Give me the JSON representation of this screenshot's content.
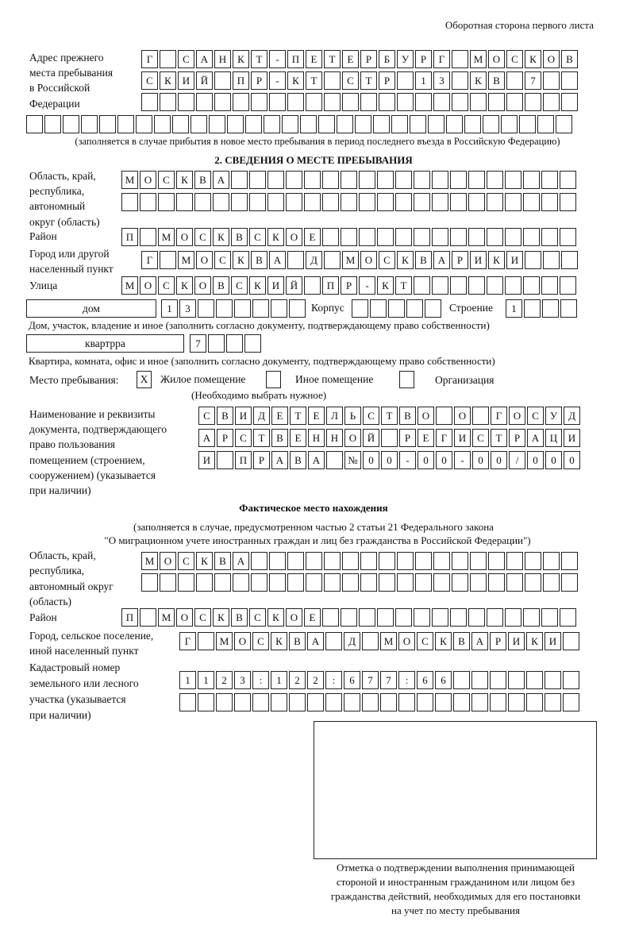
{
  "header": "Оборотная сторона первого листа",
  "prev_address": {
    "label": "Адрес прежнего места пребывания в Российской Федерации",
    "label_lines": [
      "Адрес прежнего",
      "места пребывания",
      "в Российской",
      "Федерации"
    ],
    "rows": [
      "Г САНКТ-ПЕТЕРБУРГ МОСКОВ",
      "СКИЙ ПР-КТ СТР 13 КВ 7  ",
      "",
      ""
    ],
    "note": "(заполняется в случае прибытия в новое место пребывания в период последнего въезда в Российскую Федерацию)"
  },
  "section2": {
    "title": "2. СВЕДЕНИЯ О МЕСТЕ ПРЕБЫВАНИЯ",
    "region_label_lines": [
      "Область, край,",
      "республика,",
      "автономный",
      "округ (область)"
    ],
    "region_rows": [
      "МОСКВА",
      ""
    ],
    "district_label": "Район",
    "district": "П МОСКВСКОЕ",
    "city_label_lines": [
      "Город или другой",
      "населенный пункт"
    ],
    "city": "Г МОСКВА Д МОСКВАРИКИ",
    "street_label": "Улица",
    "street": "МОСКОВСКИЙ ПР-КТ",
    "house_type": "дом",
    "house_number": "13",
    "korpus_label": "Корпус",
    "korpus": "",
    "stroenie_label": "Строение",
    "stroenie": "1",
    "house_note": "Дом, участок, владение и иное (заполнить согласно документу, подтверждающему право собственности)",
    "apt_type": "квартрра",
    "apt_number": "7",
    "apt_note": "Квартира, комната, офис и иное (заполнить согласно документу, подтверждающему право собственности)",
    "stay_place_label": "Место пребывания:",
    "stay_options": [
      {
        "label": "Жилое помещение",
        "checked": true,
        "mark": "Х"
      },
      {
        "label": "Иное помещение",
        "checked": false,
        "mark": ""
      },
      {
        "label": "Организация",
        "checked": false,
        "mark": ""
      }
    ],
    "choose_note": "(Необходимо выбрать нужное)",
    "doc_label_lines": [
      "Наименование и реквизиты",
      "документа, подтверждающего",
      "право пользования",
      "помещением (строением,",
      "сооружением) (указывается",
      "при наличии)"
    ],
    "doc_rows": [
      "СВИДЕТЕЛЬСТВО О ГОСУД",
      "АРСТВЕННОЙ РЕГИСТРАЦИ",
      "И ПРАВА №00-00-00/000"
    ]
  },
  "actual": {
    "title": "Фактическое место нахождения",
    "note_lines": [
      "(заполняется в случае, предусмотренном частью 2 статьи 21 Федерального закона",
      "\"О миграционном учете иностранных граждан и лиц без гражданства в Российской Федерации\")"
    ],
    "region_label_lines": [
      "Область, край,",
      "республика,",
      "автономный округ",
      "(область)"
    ],
    "region_rows": [
      "МОСКВА",
      ""
    ],
    "district_label": "Район",
    "district": "П МОСКВСКОЕ",
    "city_label_lines": [
      "Город, сельское поселение,",
      "иной населенный пункт"
    ],
    "city": "Г МОСКВА Д МОСКВАРИКИ",
    "cadastre_label_lines": [
      "Кадастровый номер",
      "земельного или лесного",
      "участка (указывается",
      "при наличии)"
    ],
    "cadastre_rows": [
      "1123:122:677:66",
      ""
    ]
  },
  "confirmation": {
    "caption_lines": [
      "Отметка о подтверждении выполнения принимающей",
      "стороной и иностранным гражданином или лицом без",
      "гражданства действий, необходимых для его постановки",
      "на учет по месту пребывания"
    ]
  }
}
